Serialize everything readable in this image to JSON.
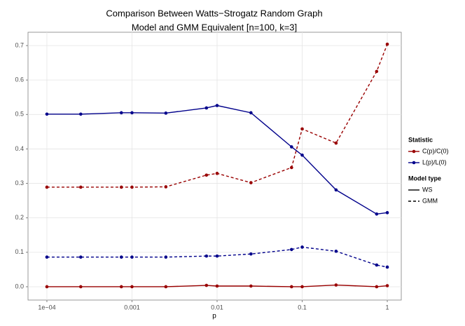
{
  "chart_data": {
    "type": "line",
    "title": [
      "Comparison Between Watts−Strogatz Random Graph",
      "Model and GMM Equivalent [n=100, k=3]"
    ],
    "xlabel": "p",
    "x": [
      0.0001,
      0.00025,
      0.00075,
      0.001,
      0.0025,
      0.0075,
      0.01,
      0.025,
      0.075,
      0.1,
      0.25,
      0.75,
      1
    ],
    "xlog": true,
    "xlim": [
      6e-05,
      1.46
    ],
    "xticks": [
      {
        "value": 0.0001,
        "label": "1e−04"
      },
      0.001,
      0.01,
      0.1,
      1
    ],
    "ylim": [
      -0.0387,
      0.7387
    ],
    "yticks": [
      {
        "value": 0,
        "label": "0.0"
      },
      0.1,
      0.2,
      0.3,
      0.4,
      0.5,
      0.6,
      0.7
    ],
    "grid": true,
    "legend_position": "right",
    "legend": {
      "statistic": {
        "title": "Statistic",
        "entries": [
          {
            "name": "C(p)/C(0)",
            "color": "#990000"
          },
          {
            "name": "L(p)/L(0)",
            "color": "#00008b"
          }
        ]
      },
      "model": {
        "title": "Model type",
        "entries": [
          {
            "name": "WS",
            "dash": "solid"
          },
          {
            "name": "GMM",
            "dash": "dashed"
          }
        ]
      }
    },
    "series": [
      {
        "statistic": 0,
        "model": 0,
        "color": "#990000",
        "dash": "solid",
        "values": [
          0,
          0,
          0,
          0,
          0,
          0.004,
          0.002,
          0.002,
          0,
          0,
          0.005,
          0,
          0.003
        ]
      },
      {
        "statistic": 0,
        "model": 1,
        "color": "#990000",
        "dash": "dashed",
        "values": [
          0.289,
          0.289,
          0.289,
          0.289,
          0.29,
          0.324,
          0.329,
          0.302,
          0.346,
          0.458,
          0.417,
          0.625,
          0.704
        ]
      },
      {
        "statistic": 1,
        "model": 0,
        "color": "#00008b",
        "dash": "solid",
        "values": [
          0.501,
          0.501,
          0.505,
          0.505,
          0.504,
          0.519,
          0.526,
          0.505,
          0.406,
          0.382,
          0.281,
          0.211,
          0.215
        ]
      },
      {
        "statistic": 1,
        "model": 1,
        "color": "#00008b",
        "dash": "dashed",
        "values": [
          0.086,
          0.086,
          0.086,
          0.086,
          0.086,
          0.089,
          0.089,
          0.095,
          0.108,
          0.115,
          0.103,
          0.063,
          0.057
        ]
      }
    ]
  }
}
